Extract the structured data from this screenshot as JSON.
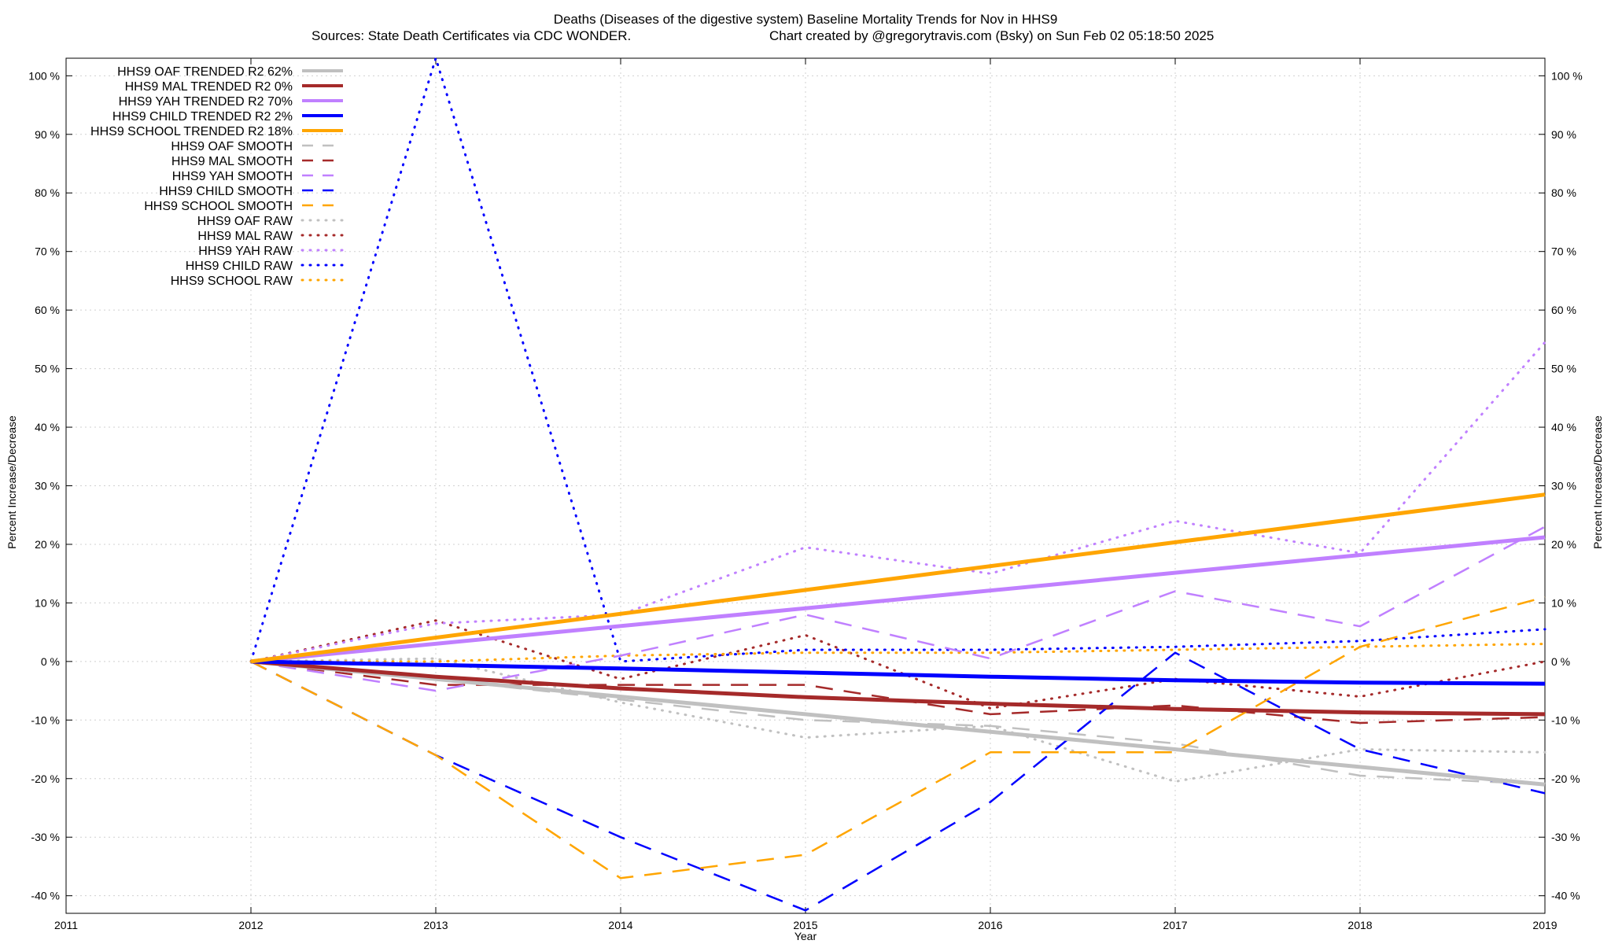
{
  "chart_data": {
    "type": "line",
    "title": "Deaths (Diseases of the digestive system)  Baseline Mortality Trends for Nov in HHS9",
    "subtitle_left": "Sources: State Death Certificates via CDC WONDER.",
    "subtitle_right": "Chart created by @gregorytravis.com (Bsky) on Sun Feb 02 05:18:50 2025",
    "xlabel": "Year",
    "ylabel_left": "Percent Increase/Decrease",
    "ylabel_right": "Percent Increase/Decrease",
    "xlim": [
      2011,
      2019
    ],
    "ylim": [
      -43,
      103
    ],
    "grid": true,
    "legend_position": "top-left",
    "x_ticks": [
      "2011",
      "2012",
      "2013",
      "2014",
      "2015",
      "2016",
      "2017",
      "2018",
      "2019"
    ],
    "y_ticks": [
      {
        "value": 100,
        "label": "100 %"
      },
      {
        "value": 90,
        "label": "90 %"
      },
      {
        "value": 80,
        "label": "80 %"
      },
      {
        "value": 70,
        "label": "70 %"
      },
      {
        "value": 60,
        "label": "60 %"
      },
      {
        "value": 50,
        "label": "50 %"
      },
      {
        "value": 40,
        "label": "40 %"
      },
      {
        "value": 30,
        "label": "30 %"
      },
      {
        "value": 20,
        "label": "20 %"
      },
      {
        "value": 10,
        "label": "10 %"
      },
      {
        "value": 0,
        "label": "0 %"
      },
      {
        "value": -10,
        "label": "-10 %"
      },
      {
        "value": -20,
        "label": "-20 %"
      },
      {
        "value": -30,
        "label": "-30 %"
      },
      {
        "value": -40,
        "label": "-40 %"
      }
    ],
    "series": [
      {
        "name": "HHS9 OAF TRENDED R2  62%",
        "style": "solid",
        "color": "#c0c0c0",
        "x": [
          2012,
          2019
        ],
        "y": [
          0,
          -21
        ]
      },
      {
        "name": "HHS9 MAL TRENDED R2   0%",
        "style": "solid",
        "color": "#a52a2a",
        "x": [
          2012,
          2013,
          2014,
          2015,
          2016,
          2017,
          2018,
          2019
        ],
        "y": [
          0,
          -2.6,
          -4.6,
          -6.1,
          -7.2,
          -8.1,
          -8.7,
          -9
        ]
      },
      {
        "name": "HHS9 YAH TRENDED R2  70%",
        "style": "solid",
        "color": "#c080ff",
        "x": [
          2012,
          2019
        ],
        "y": [
          0,
          21.2
        ]
      },
      {
        "name": "HHS9 CHILD TRENDED R2   2%",
        "style": "solid",
        "color": "#0000ff",
        "x": [
          2012,
          2013,
          2014,
          2015,
          2016,
          2017,
          2018,
          2019
        ],
        "y": [
          0,
          -0.6,
          -1.2,
          -1.9,
          -2.6,
          -3.2,
          -3.6,
          -3.8
        ]
      },
      {
        "name": "HHS9 SCHOOL TRENDED R2  18%",
        "style": "solid",
        "color": "#ffa500",
        "x": [
          2012,
          2019
        ],
        "y": [
          0,
          28.5
        ]
      },
      {
        "name": "HHS9 OAF SMOOTH",
        "style": "dash",
        "color": "#c0c0c0",
        "x": [
          2012,
          2013,
          2014,
          2015,
          2016,
          2017,
          2018,
          2019
        ],
        "y": [
          0,
          -3,
          -6.5,
          -10,
          -11,
          -14,
          -19.5,
          -21
        ]
      },
      {
        "name": "HHS9 MAL SMOOTH",
        "style": "dash",
        "color": "#a52a2a",
        "x": [
          2012,
          2013,
          2014,
          2015,
          2016,
          2017,
          2018,
          2019
        ],
        "y": [
          0,
          -4,
          -4,
          -4,
          -9,
          -7.5,
          -10.5,
          -9.5
        ]
      },
      {
        "name": "HHS9 YAH SMOOTH",
        "style": "dash",
        "color": "#c080ff",
        "x": [
          2012,
          2013,
          2014,
          2015,
          2016,
          2017,
          2018,
          2019
        ],
        "y": [
          0,
          -5,
          1,
          8,
          0.5,
          12,
          6,
          23
        ]
      },
      {
        "name": "HHS9 CHILD SMOOTH",
        "style": "dash",
        "color": "#0000ff",
        "x": [
          2012,
          2013,
          2014,
          2015,
          2016,
          2017,
          2018,
          2019
        ],
        "y": [
          0,
          -16,
          -30,
          -42.5,
          -24,
          1.5,
          -15,
          -22.5
        ]
      },
      {
        "name": "HHS9 SCHOOL SMOOTH",
        "style": "dash",
        "color": "#ffa500",
        "x": [
          2012,
          2013,
          2014,
          2015,
          2016,
          2017,
          2018,
          2019
        ],
        "y": [
          0,
          -16,
          -37,
          -33,
          -15.5,
          -15.5,
          2.5,
          11
        ]
      },
      {
        "name": "HHS9 OAF RAW",
        "style": "dot",
        "color": "#c0c0c0",
        "x": [
          2012,
          2013,
          2014,
          2015,
          2016,
          2017,
          2018,
          2019
        ],
        "y": [
          0,
          0.5,
          -7,
          -13,
          -11,
          -20.5,
          -15,
          -15.5
        ]
      },
      {
        "name": "HHS9 MAL RAW",
        "style": "dot",
        "color": "#a52a2a",
        "x": [
          2012,
          2013,
          2014,
          2015,
          2016,
          2017,
          2018,
          2019
        ],
        "y": [
          0,
          7,
          -3,
          4.5,
          -8,
          -3,
          -6,
          0
        ]
      },
      {
        "name": "HHS9 YAH RAW",
        "style": "dot",
        "color": "#c080ff",
        "x": [
          2012,
          2013,
          2014,
          2015,
          2016,
          2017,
          2018,
          2019
        ],
        "y": [
          0,
          6.5,
          8,
          19.5,
          15,
          24,
          18.5,
          54.5
        ]
      },
      {
        "name": "HHS9 CHILD RAW",
        "style": "dot",
        "color": "#0000ff",
        "x": [
          2012,
          2013,
          2014,
          2015,
          2016,
          2017,
          2018,
          2019
        ],
        "y": [
          0,
          103,
          0,
          2,
          2,
          2.5,
          3.5,
          5.5
        ]
      },
      {
        "name": "HHS9 SCHOOL RAW",
        "style": "dot",
        "color": "#ffa500",
        "x": [
          2012,
          2013,
          2014,
          2015,
          2016,
          2017,
          2018,
          2019
        ],
        "y": [
          0,
          0,
          1,
          1.5,
          1.5,
          2,
          2.5,
          3
        ]
      }
    ]
  }
}
